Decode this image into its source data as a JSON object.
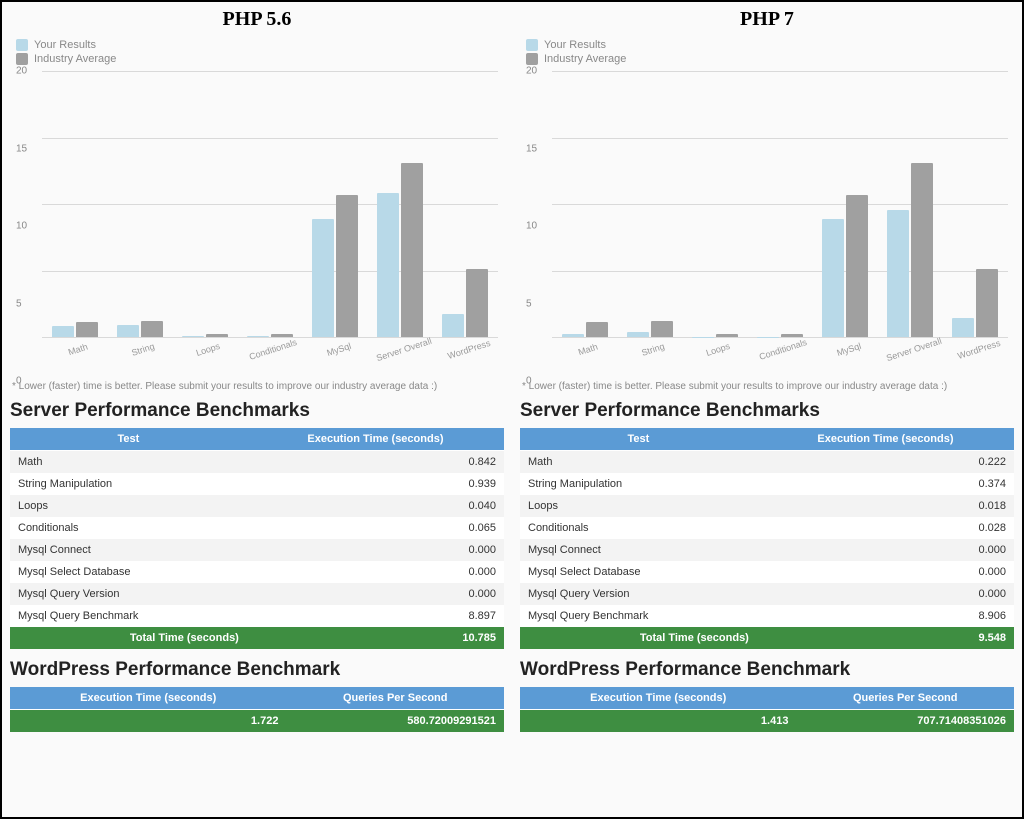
{
  "colors": {
    "your": "#b8d9e8",
    "industry": "#a0a0a0",
    "header": "#5b9bd5",
    "total": "#3e8e41",
    "grid": "#d9d9d9",
    "bg": "#fafafa"
  },
  "chart_meta": {
    "ymin": 0,
    "ymax": 20,
    "yticks": [
      0,
      5,
      10,
      15,
      20
    ],
    "categories": [
      "Math",
      "String",
      "Loops",
      "Conditionals",
      "MySql",
      "Server Overall",
      "WordPress"
    ],
    "legend": {
      "your": "Your Results",
      "industry": "Industry Average"
    },
    "footnote": "* Lower (faster) time is better. Please submit your results to improve our industry average data :)"
  },
  "headings": {
    "server": "Server Performance Benchmarks",
    "wp": "WordPress Performance Benchmark",
    "col_test": "Test",
    "col_exec": "Execution Time (seconds)",
    "col_qps": "Queries Per Second",
    "total": "Total Time (seconds)"
  },
  "panels": [
    {
      "title": "PHP 5.6",
      "chart": {
        "your": [
          0.85,
          0.94,
          0.04,
          0.07,
          8.9,
          10.8,
          1.7
        ],
        "industry": [
          1.1,
          1.2,
          0.2,
          0.25,
          10.7,
          13.1,
          5.1
        ]
      },
      "server_rows": [
        [
          "Math",
          "0.842"
        ],
        [
          "String Manipulation",
          "0.939"
        ],
        [
          "Loops",
          "0.040"
        ],
        [
          "Conditionals",
          "0.065"
        ],
        [
          "Mysql Connect",
          "0.000"
        ],
        [
          "Mysql Select Database",
          "0.000"
        ],
        [
          "Mysql Query Version",
          "0.000"
        ],
        [
          "Mysql Query Benchmark",
          "8.897"
        ]
      ],
      "total": "10.785",
      "wp": {
        "exec": "1.722",
        "qps": "580.72009291521"
      }
    },
    {
      "title": "PHP 7",
      "chart": {
        "your": [
          0.22,
          0.37,
          0.02,
          0.03,
          8.9,
          9.55,
          1.4
        ],
        "industry": [
          1.1,
          1.2,
          0.2,
          0.25,
          10.7,
          13.1,
          5.1
        ]
      },
      "server_rows": [
        [
          "Math",
          "0.222"
        ],
        [
          "String Manipulation",
          "0.374"
        ],
        [
          "Loops",
          "0.018"
        ],
        [
          "Conditionals",
          "0.028"
        ],
        [
          "Mysql Connect",
          "0.000"
        ],
        [
          "Mysql Select Database",
          "0.000"
        ],
        [
          "Mysql Query Version",
          "0.000"
        ],
        [
          "Mysql Query Benchmark",
          "8.906"
        ]
      ],
      "total": "9.548",
      "wp": {
        "exec": "1.413",
        "qps": "707.71408351026"
      }
    }
  ]
}
